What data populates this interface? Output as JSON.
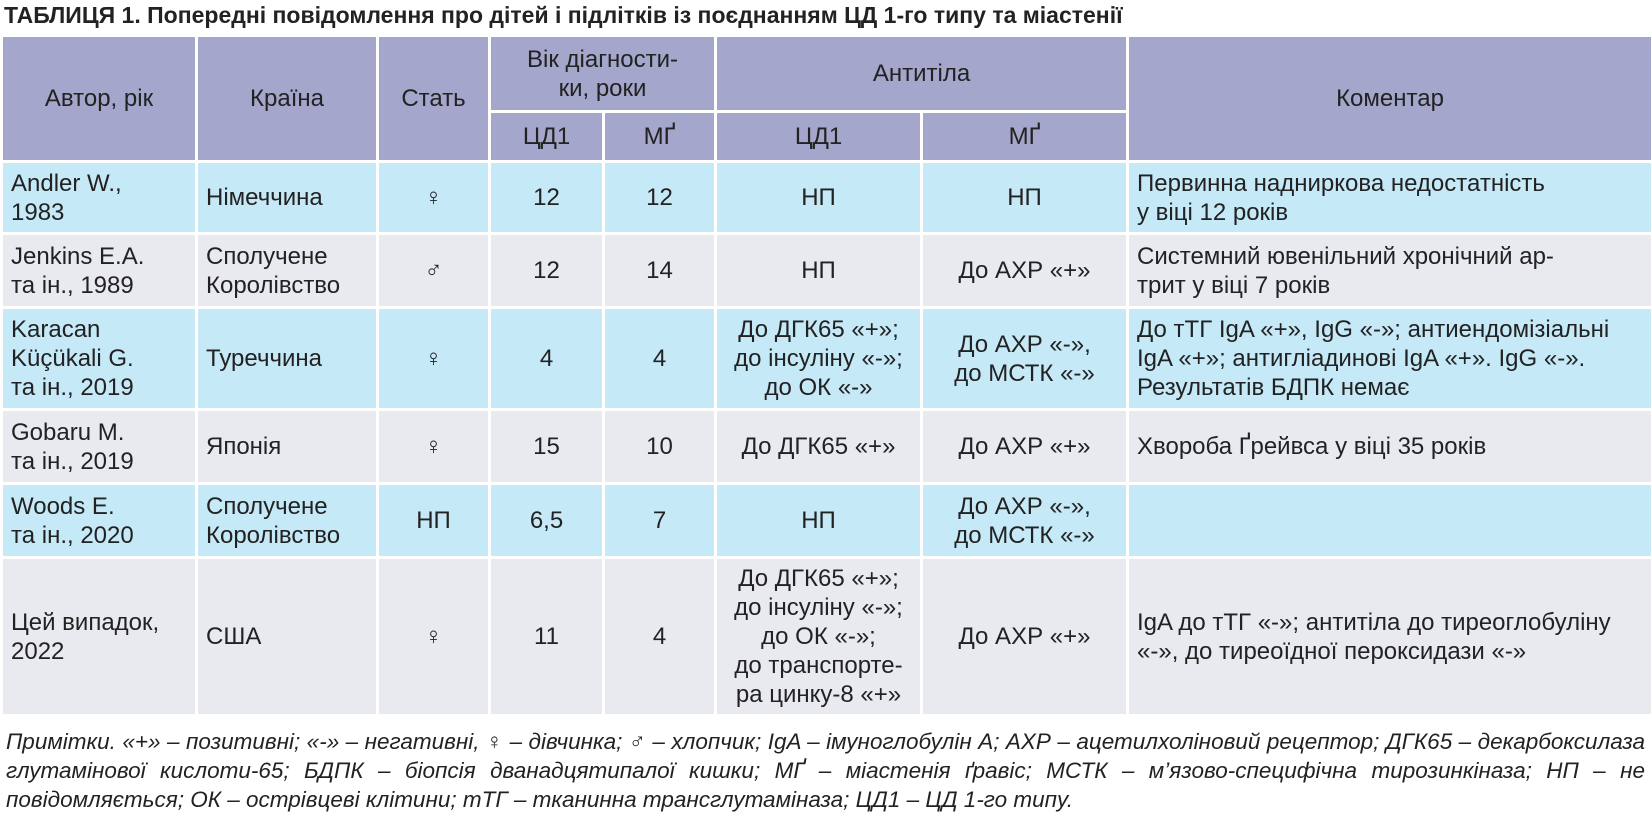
{
  "title": "ТАБЛИЦЯ 1. Попередні повідомлення про дітей і підлітків із поєднанням ЦД 1-го типу та міастенії",
  "table": {
    "header": [
      "Автор, рік",
      "Країна",
      "Стать",
      "Вік діагности-\nки, роки",
      "Антитіла",
      "Коментар"
    ],
    "subheader": [
      "ЦД1",
      "МҐ",
      "ЦД1",
      "МҐ"
    ],
    "rows": [
      [
        "Andler W.,\n1983",
        "Німеччина",
        "♀",
        "12",
        "12",
        "НП",
        "НП",
        "Первинна надниркова недостатність\nу віці 12 років"
      ],
      [
        "Jenkins E.A.\nта ін., 1989",
        "Сполучене\nКоролівство",
        "♂",
        "12",
        "14",
        "НП",
        "До АХР «+»",
        "Системний ювенільний хронічний ар-\nтрит у віці 7 років"
      ],
      [
        "Karacan\nKüçükali G.\nта ін., 2019",
        "Туреччина",
        "♀",
        "4",
        "4",
        "До ДГК65 «+»;\nдо інсуліну «-»;\nдо ОК «-»",
        "До АХР «-»,\nдо МСТК «-»",
        "До тТГ IgA «+», IgG «-»; антиендомізіальні\nIgA «+»; антигліадинові IgA «+». IgG «-».\nРезультатів БДПК немає"
      ],
      [
        "Gobaru M.\nта ін., 2019",
        "Японія",
        "♀",
        "15",
        "10",
        "До ДГК65 «+»",
        "До АХР «+»",
        "Хвороба Ґрейвса у віці 35 років"
      ],
      [
        "Woods E.\nта ін., 2020",
        "Сполучене\nКоролівство",
        "НП",
        "6,5",
        "7",
        "НП",
        "До АХР «-»,\nдо МСТК «-»"
      ],
      [
        "Цей випадок,\n2022",
        "США",
        "♀",
        "11",
        "4",
        "До ДГК65 «+»;\nдо інсуліну «-»;\nдо ОК «-»;\nдо транспорте-\nра цинку-8 «+»",
        "До АХР «+»",
        "IgA до тТГ «-»; антитіла до тиреоглобуліну\n«-», до тиреоїдної пероксидази «-»"
      ]
    ]
  },
  "note": "Примітки. «+» – позитивні; «-» – негативні, ♀ – дівчинка; ♂ – хлопчик; IgA – імуноглобулін А; АХР – ацетилхоліновий рецептор; ДГК65 – декарбоксилаза глутамінової кислоти-65; БДПК – біопсія дванадцятипалої кишки; МҐ – міастенія ґравіс; МСТК – м’язово-специфічна тирозинкіназа; НП – не повідомляється; ОК – острівцеві клітини; тТГ – тканинна трансглутаміназа; ЦД1 – ЦД 1-го типу."
}
